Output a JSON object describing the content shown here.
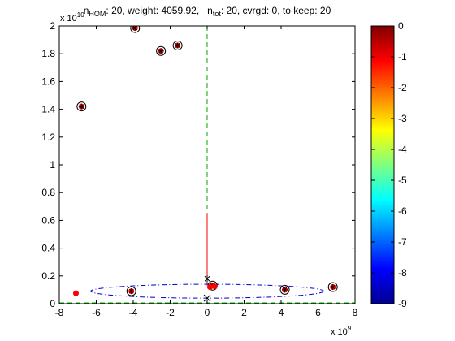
{
  "chart_data": {
    "type": "scatter",
    "title": {
      "n_main": "n",
      "n_sub": "HOM",
      "part1": ": 20, weight: 4059.92,",
      "tot_main": "n",
      "tot_sub": "tot",
      "part2": ": 20, cvrgd: 0, to keep: 20"
    },
    "x_axis": {
      "range": [
        -8,
        8
      ],
      "ticks": [
        "-8",
        "-6",
        "-4",
        "-2",
        "0",
        "2",
        "4",
        "6",
        "8"
      ],
      "multiplier_base": "x 10",
      "multiplier_exp": "9"
    },
    "y_axis": {
      "range": [
        0,
        2
      ],
      "ticks": [
        "0",
        "0.2",
        "0.4",
        "0.6",
        "0.8",
        "1",
        "1.2",
        "1.4",
        "1.6",
        "1.8",
        "2"
      ],
      "multiplier_base": "x 10",
      "multiplier_exp": "10"
    },
    "colorbar": {
      "range": [
        -9,
        0
      ],
      "ticks": [
        "0",
        "-1",
        "-2",
        "-3",
        "-4",
        "-5",
        "-6",
        "-7",
        "-8",
        "-9"
      ],
      "colormap": "jet"
    },
    "points": [
      {
        "x": -3.9,
        "y": 1.985,
        "ring": true
      },
      {
        "x": -2.5,
        "y": 1.82,
        "ring": true
      },
      {
        "x": -1.6,
        "y": 1.86,
        "ring": true
      },
      {
        "x": -6.8,
        "y": 1.42,
        "ring": true
      },
      {
        "x": -7.1,
        "y": 0.075,
        "ring": false
      },
      {
        "x": -4.1,
        "y": 0.09,
        "ring": true
      },
      {
        "x": 4.2,
        "y": 0.1,
        "ring": true
      },
      {
        "x": 6.8,
        "y": 0.12,
        "ring": true
      },
      {
        "x": 0.3,
        "y": 0.13,
        "ring": true
      },
      {
        "x": 0.15,
        "y": 0.12,
        "ring": false
      },
      {
        "x": 0.4,
        "y": 0.125,
        "ring": false
      }
    ],
    "ellipse": {
      "cx": 0.0,
      "cy": 0.09,
      "rx": 6.3,
      "ry": 0.05
    },
    "center_marker": {
      "x": 0.0,
      "y": 0.18
    },
    "vertical_line": {
      "x": 0.0,
      "y_green_top": 2.0,
      "y_red_top": 0.65,
      "y_bottom": 0.13
    },
    "colors": {
      "marker_fill": "#ff0000",
      "ellipse": "#0000cc",
      "dashed": "#00aa00",
      "red_line": "#ff0000"
    }
  }
}
